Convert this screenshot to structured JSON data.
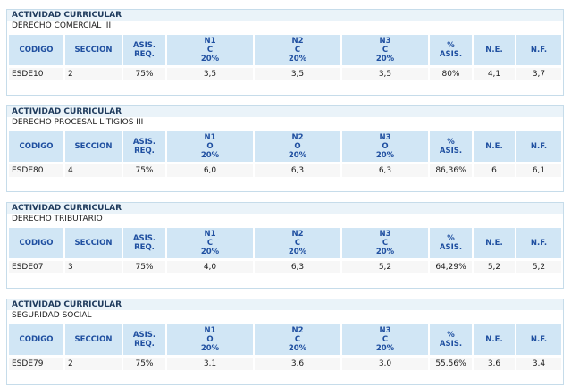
{
  "columns": [
    {
      "key": "codigo",
      "label": "CODIGO"
    },
    {
      "key": "seccion",
      "label": "SECCION"
    },
    {
      "key": "asis_req",
      "label": "ASIS.\nREQ."
    },
    {
      "key": "n1",
      "label": ""
    },
    {
      "key": "n2",
      "label": ""
    },
    {
      "key": "n3",
      "label": ""
    },
    {
      "key": "pct_asis",
      "label": "%\nASIS."
    },
    {
      "key": "ne",
      "label": "N.E."
    },
    {
      "key": "nf",
      "label": "N.F."
    }
  ],
  "blocks": [
    {
      "header": "ACTIVIDAD CURRICULAR",
      "subject": "DERECHO COMERCIAL III",
      "n_headers": [
        "N1\nC\n20%",
        "N2\nC\n20%",
        "N3\nC\n20%"
      ],
      "row": {
        "codigo": "ESDE10",
        "seccion": "2",
        "asis_req": "75%",
        "n1": "3,5",
        "n2": "3,5",
        "n3": "3,5",
        "pct_asis": "80%",
        "ne": "4,1",
        "nf": "3,7"
      }
    },
    {
      "header": "ACTIVIDAD CURRICULAR",
      "subject": "DERECHO PROCESAL LITIGIOS III",
      "n_headers": [
        "N1\nO\n20%",
        "N2\nO\n20%",
        "N3\nO\n20%"
      ],
      "row": {
        "codigo": "ESDE80",
        "seccion": "4",
        "asis_req": "75%",
        "n1": "6,0",
        "n2": "6,3",
        "n3": "6,3",
        "pct_asis": "86,36%",
        "ne": "6",
        "nf": "6,1"
      }
    },
    {
      "header": "ACTIVIDAD CURRICULAR",
      "subject": "DERECHO TRIBUTARIO",
      "n_headers": [
        "N1\nC\n20%",
        "N2\nC\n20%",
        "N3\nC\n20%"
      ],
      "row": {
        "codigo": "ESDE07",
        "seccion": "3",
        "asis_req": "75%",
        "n1": "4,0",
        "n2": "6,3",
        "n3": "5,2",
        "pct_asis": "64,29%",
        "ne": "5,2",
        "nf": "5,2"
      }
    },
    {
      "header": "ACTIVIDAD CURRICULAR",
      "subject": "SEGURIDAD SOCIAL",
      "n_headers": [
        "N1\nO\n20%",
        "N2\nC\n20%",
        "N3\nC\n20%"
      ],
      "row": {
        "codigo": "ESDE79",
        "seccion": "2",
        "asis_req": "75%",
        "n1": "3,1",
        "n2": "3,6",
        "n3": "3,0",
        "pct_asis": "55,56%",
        "ne": "3,6",
        "nf": "3,4"
      }
    }
  ]
}
